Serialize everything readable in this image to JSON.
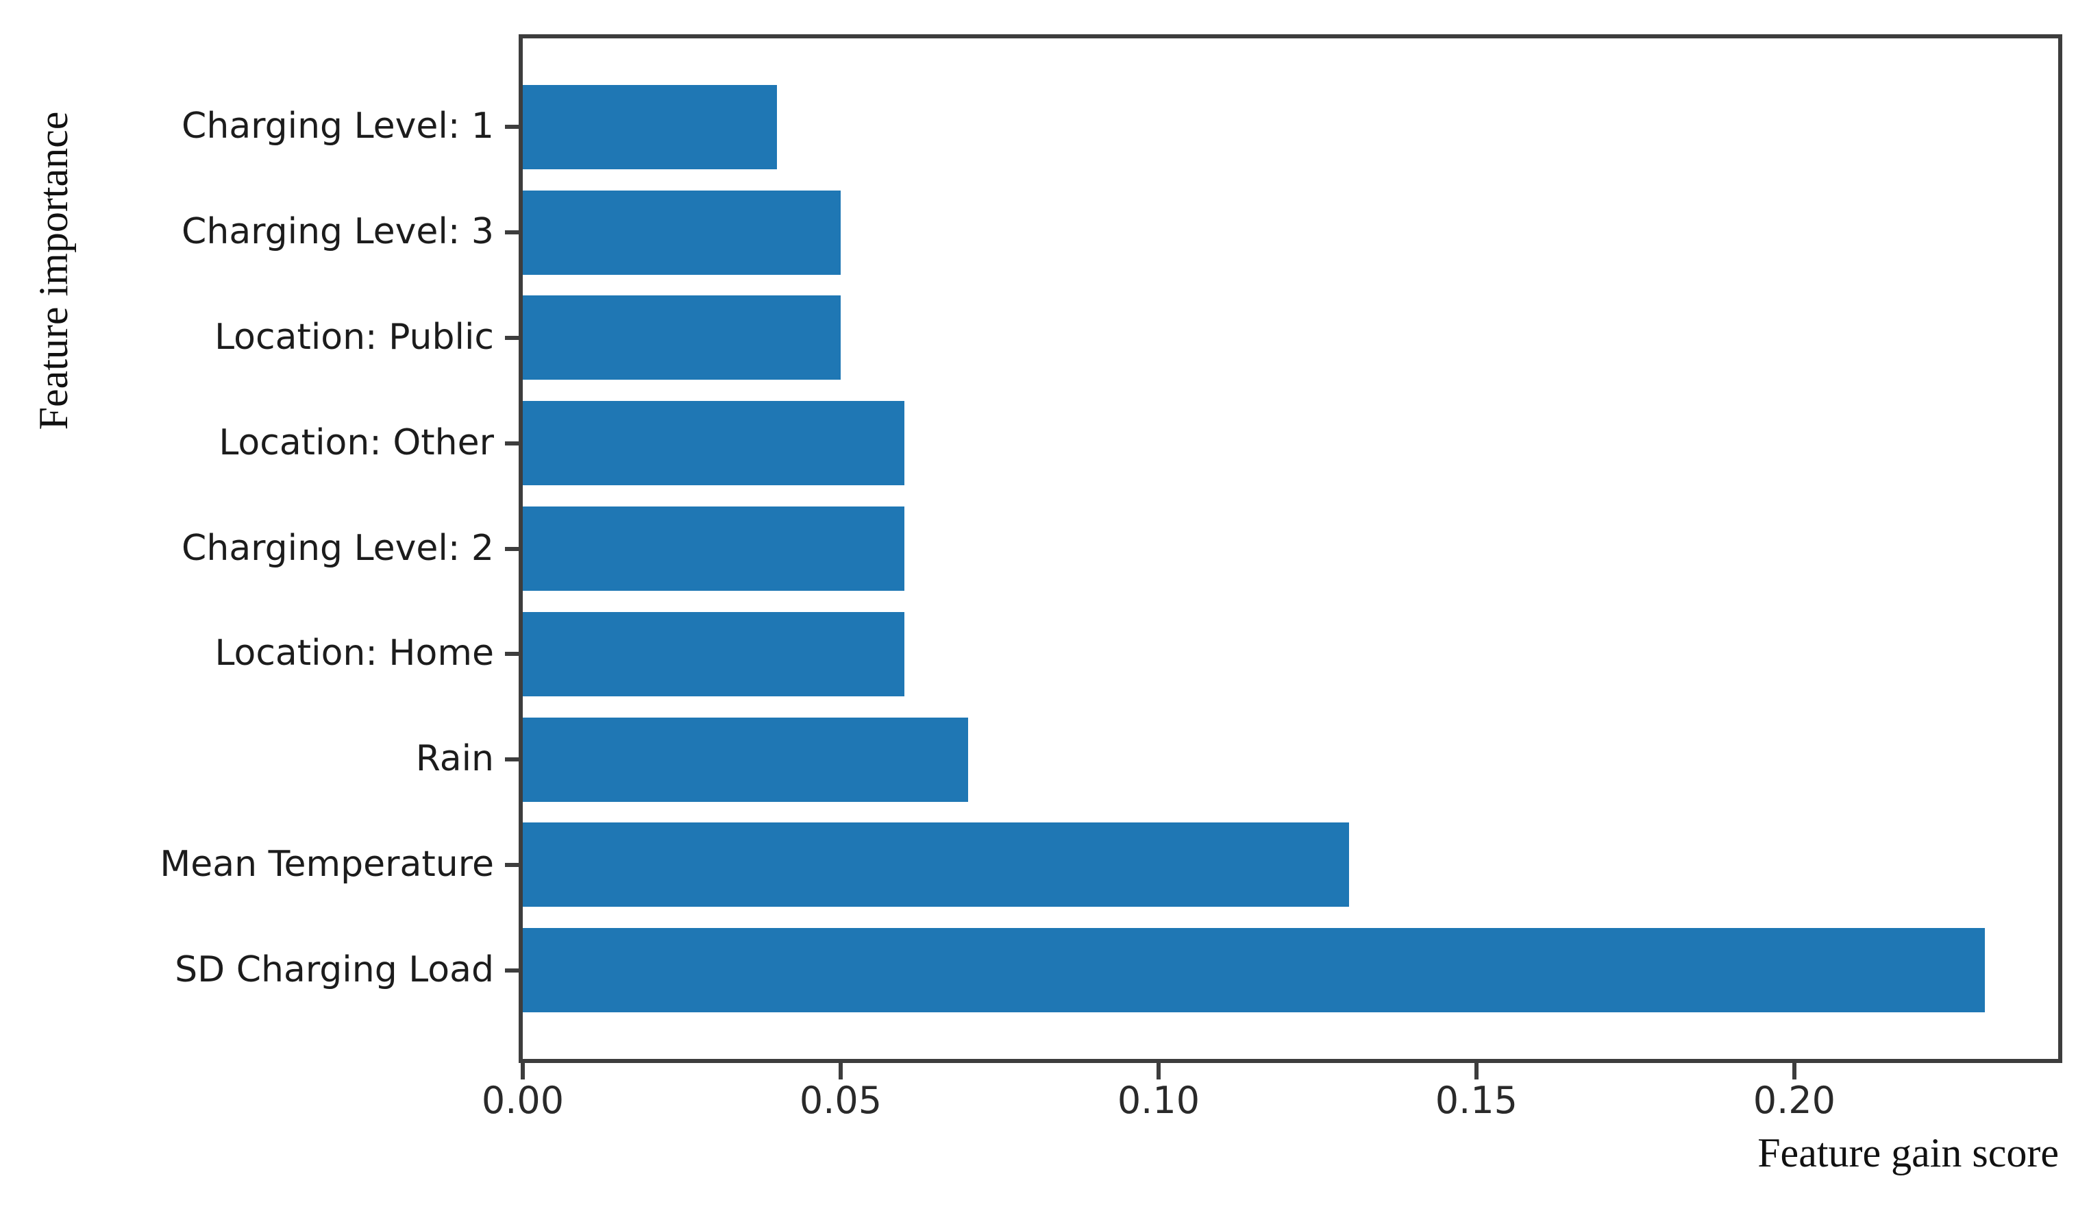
{
  "figure": {
    "kind": "horizontal-bar-chart",
    "background": "#ffffff"
  },
  "colors": {
    "bar": "#1f77b4",
    "spine": "#3d3d3d",
    "label_text": "#1c1c1c",
    "title_text": "#111111"
  },
  "chart_data": {
    "type": "bar",
    "orientation": "horizontal",
    "title": "",
    "xlabel": "Feature gain score",
    "ylabel": "Feature importance",
    "categories": [
      "Charging Level: 1",
      "Charging Level: 3",
      "Location: Public",
      "Location: Other",
      "Charging Level: 2",
      "Location: Home",
      "Rain",
      "Mean Temperature",
      "SD Charging Load"
    ],
    "values": [
      0.04,
      0.05,
      0.05,
      0.06,
      0.06,
      0.06,
      0.07,
      0.13,
      0.23
    ],
    "xlim": [
      0,
      0.2415
    ],
    "xticks": {
      "values": [
        0.0,
        0.05,
        0.1,
        0.15,
        0.2
      ],
      "labels": [
        "0.00",
        "0.05",
        "0.10",
        "0.15",
        "0.20"
      ]
    },
    "grid": false,
    "legend": "none",
    "bar_fraction_of_slot": 0.8,
    "first_slot_offset_units": 0.84,
    "total_units": 9.68
  }
}
